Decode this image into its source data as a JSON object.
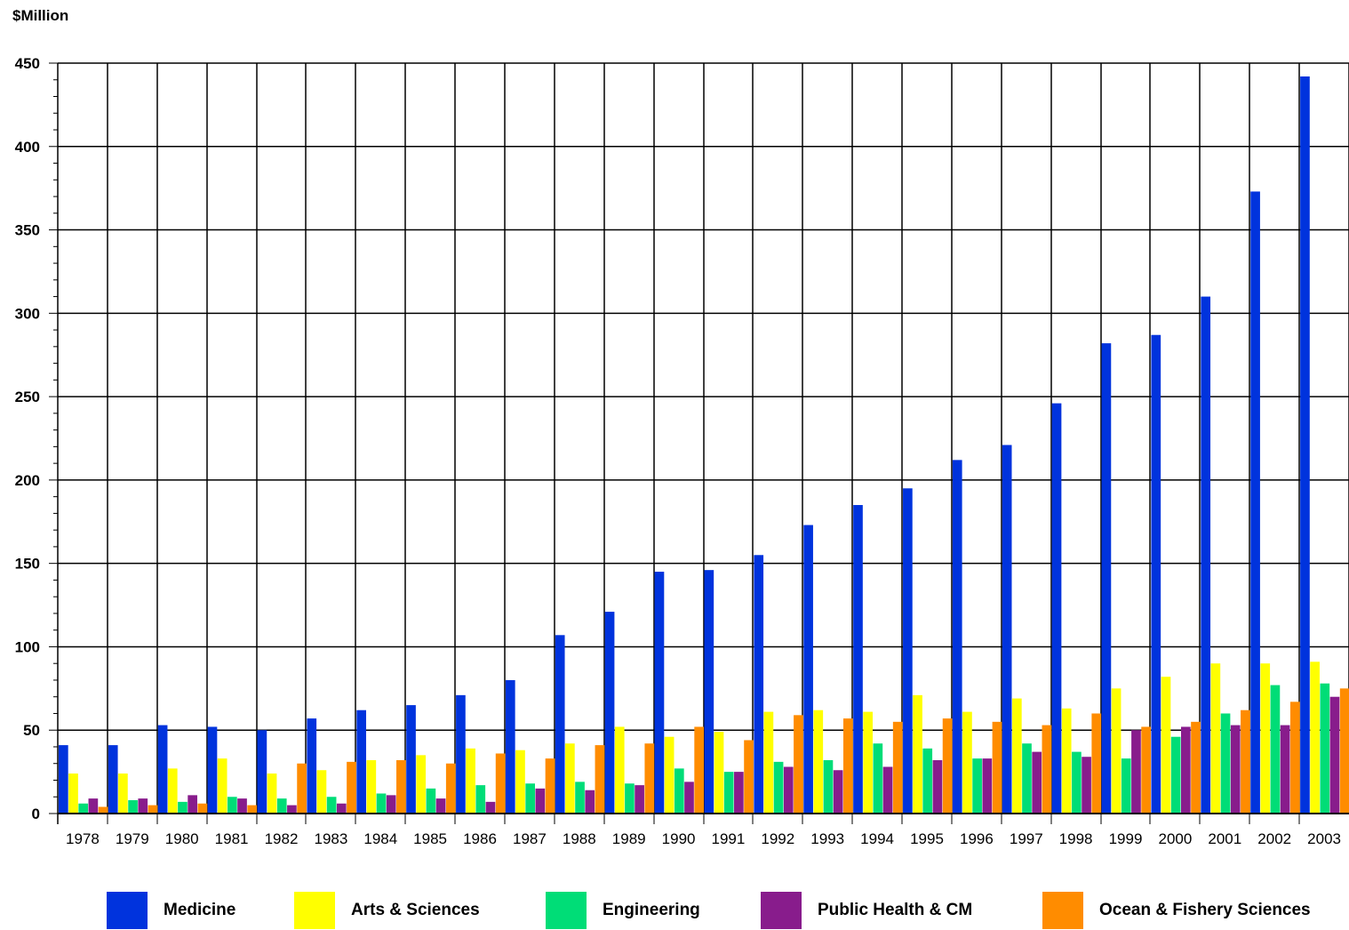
{
  "chart_data": {
    "type": "bar",
    "title": "",
    "unit_label": "$Million",
    "xlabel": "",
    "ylabel": "",
    "ylim": [
      0,
      450
    ],
    "yticks": [
      0,
      50,
      100,
      150,
      200,
      250,
      300,
      350,
      400,
      450
    ],
    "grid": true,
    "legend_position": "bottom",
    "categories": [
      "1978",
      "1979",
      "1980",
      "1981",
      "1982",
      "1983",
      "1984",
      "1985",
      "1986",
      "1987",
      "1988",
      "1989",
      "1990",
      "1991",
      "1992",
      "1993",
      "1994",
      "1995",
      "1996",
      "1997",
      "1998",
      "1999",
      "2000",
      "2001",
      "2002",
      "2003"
    ],
    "series": [
      {
        "name": "Medicine",
        "color": "#0033dd",
        "values": [
          41,
          41,
          53,
          52,
          50,
          57,
          62,
          65,
          71,
          80,
          107,
          121,
          145,
          146,
          155,
          173,
          185,
          195,
          212,
          221,
          246,
          282,
          287,
          310,
          373,
          442
        ]
      },
      {
        "name": "Arts & Sciences",
        "color": "#ffff00",
        "values": [
          24,
          24,
          27,
          33,
          24,
          26,
          32,
          35,
          39,
          38,
          42,
          52,
          46,
          49,
          61,
          62,
          61,
          71,
          61,
          69,
          63,
          75,
          82,
          90,
          90,
          91
        ]
      },
      {
        "name": "Engineering",
        "color": "#00dd77",
        "values": [
          6,
          8,
          7,
          10,
          9,
          10,
          12,
          15,
          17,
          18,
          19,
          18,
          27,
          25,
          31,
          32,
          42,
          39,
          33,
          42,
          37,
          33,
          46,
          60,
          77,
          78
        ]
      },
      {
        "name": "Public Health & CM",
        "color": "#881c8c",
        "values": [
          9,
          9,
          11,
          9,
          5,
          6,
          11,
          9,
          7,
          15,
          14,
          17,
          19,
          25,
          28,
          26,
          28,
          32,
          33,
          37,
          34,
          50,
          52,
          53,
          53,
          70
        ]
      },
      {
        "name": "Ocean & Fishery Sciences",
        "color": "#ff8c00",
        "values": [
          4,
          5,
          6,
          5,
          30,
          31,
          32,
          30,
          36,
          33,
          41,
          42,
          52,
          44,
          59,
          57,
          55,
          57,
          55,
          53,
          60,
          52,
          55,
          62,
          67,
          75
        ]
      }
    ]
  }
}
